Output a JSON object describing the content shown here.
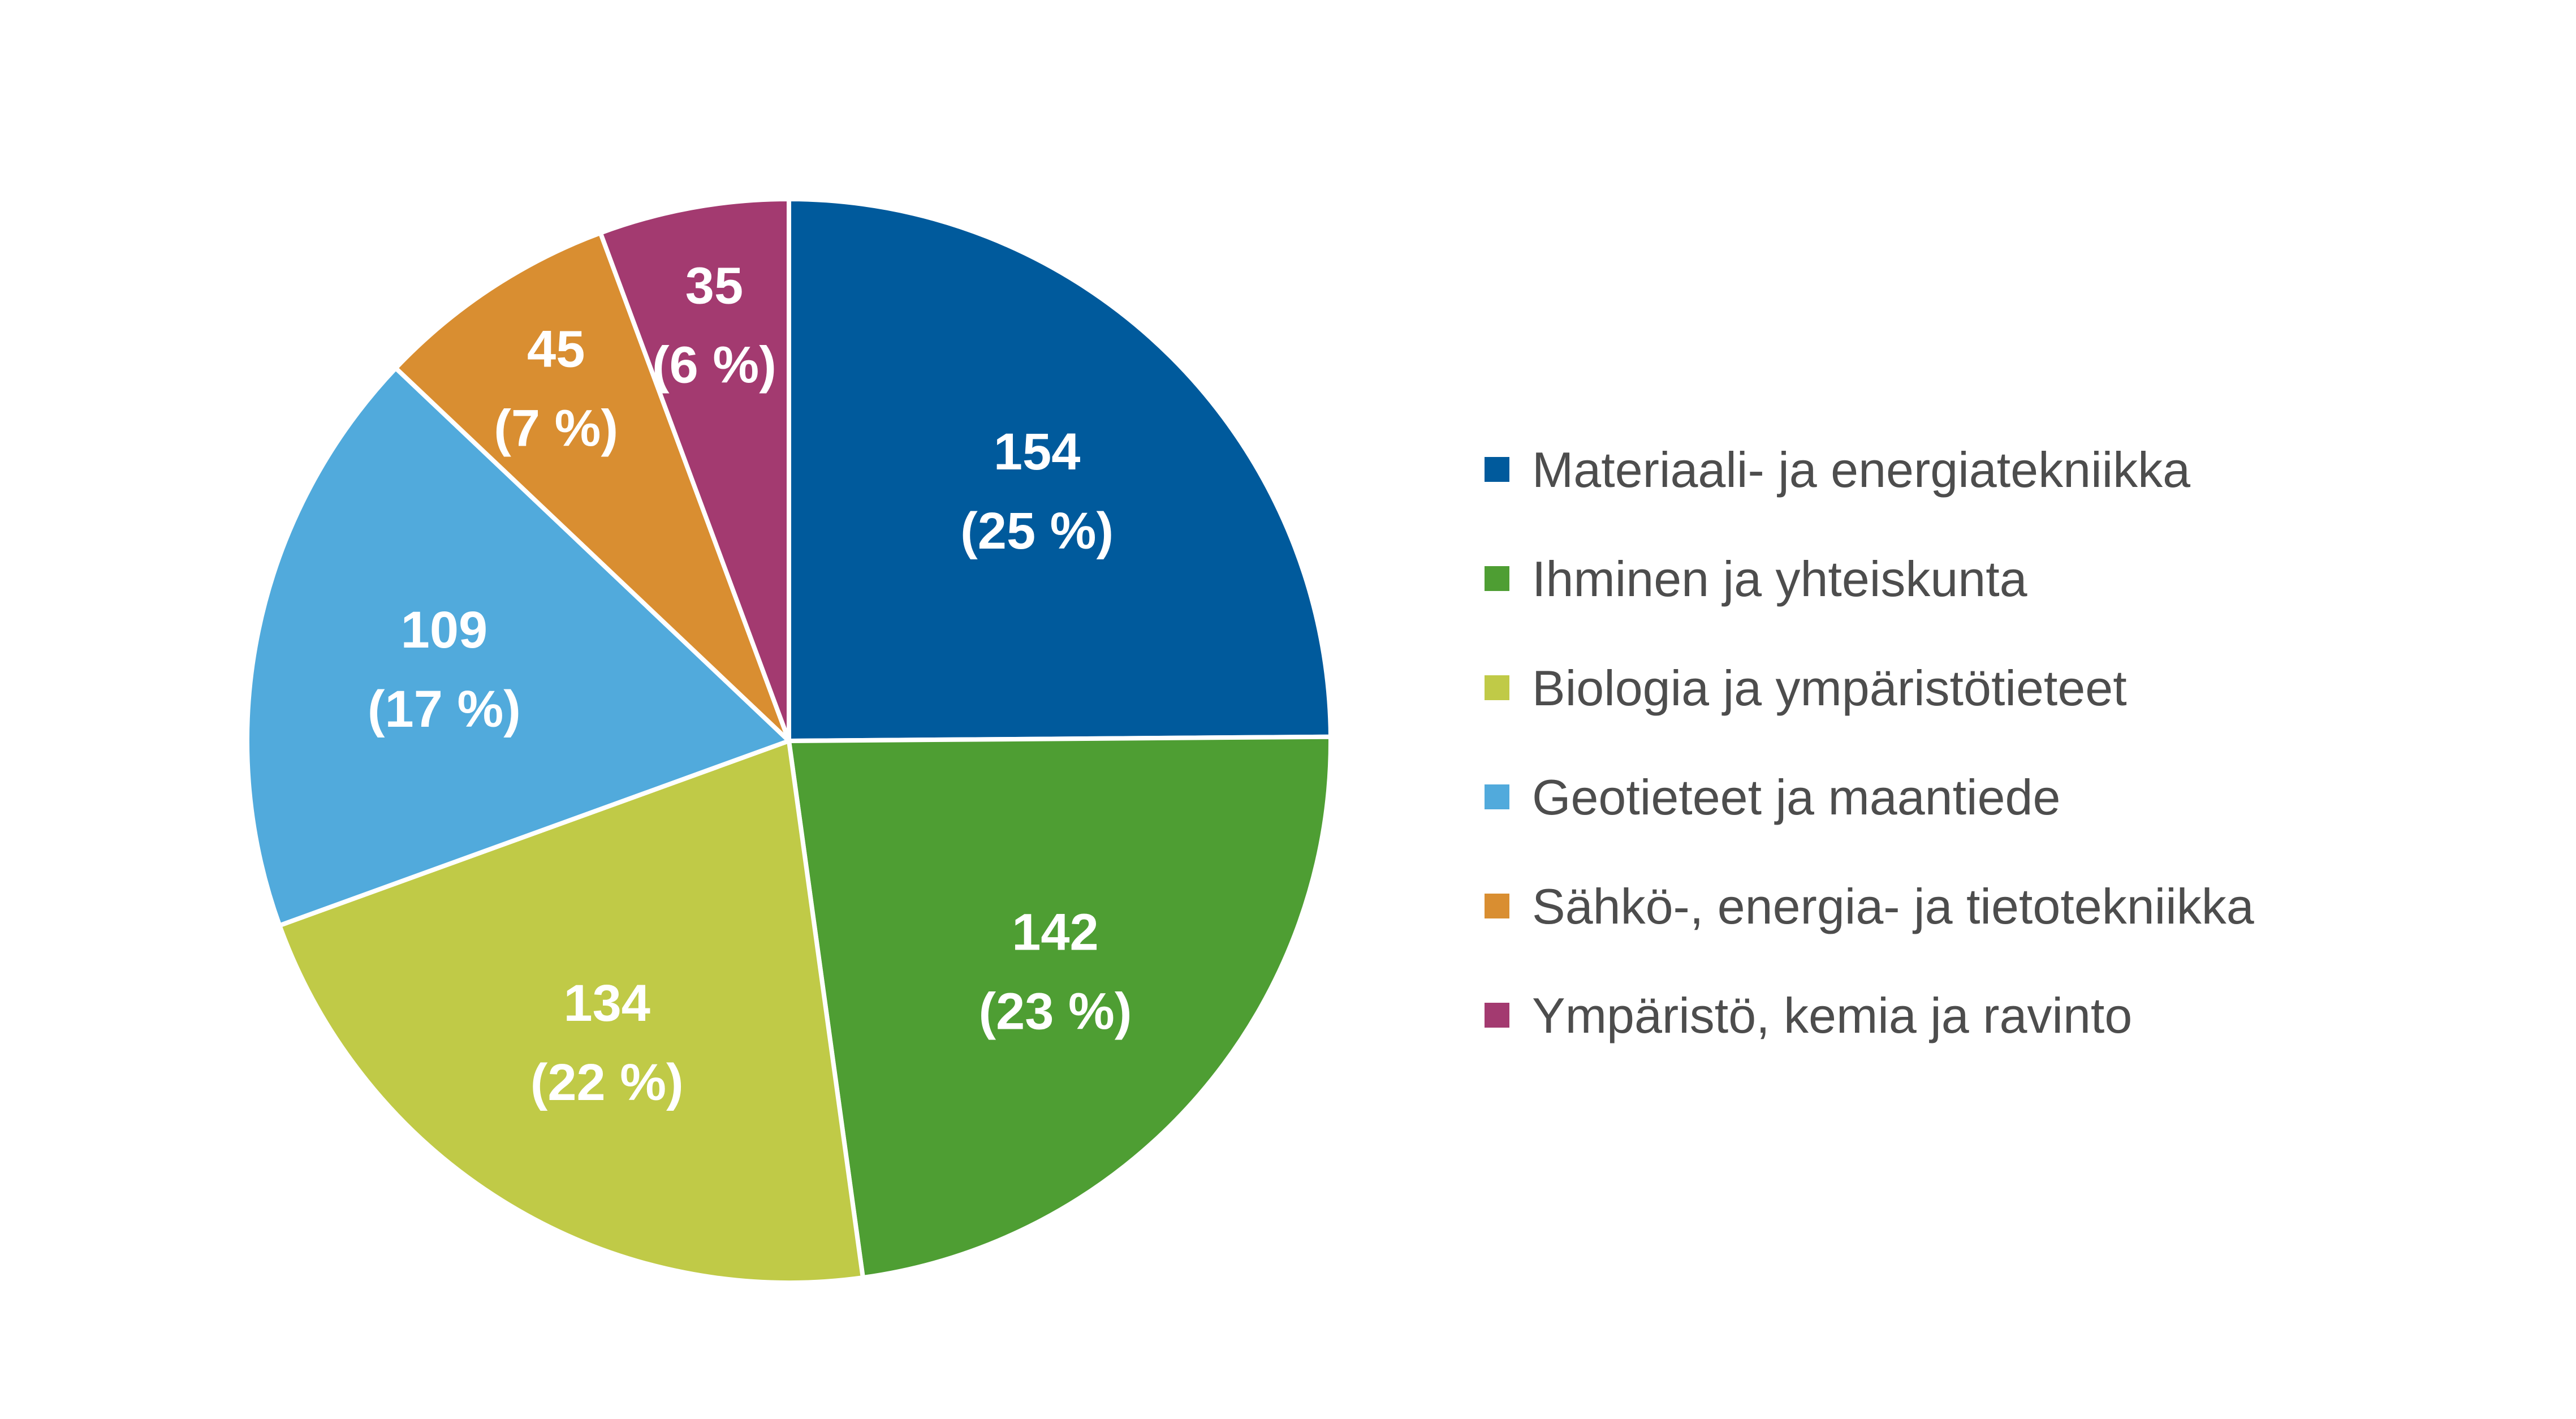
{
  "chart_data": {
    "type": "pie",
    "title": "",
    "start_angle_deg": 0,
    "direction": "clockwise",
    "legend_position": "right",
    "slice_border_color": "#ffffff",
    "label_color": "#ffffff",
    "legend_text_color": "#4d4d4d",
    "slices": [
      {
        "name": "Materiaali- ja energiatekniikka",
        "value": 154,
        "pct_label": "(25 %)",
        "value_label": "154",
        "color": "#005a9c"
      },
      {
        "name": "Ihminen ja yhteiskunta",
        "value": 142,
        "pct_label": "(23 %)",
        "value_label": "142",
        "color": "#4e9e33"
      },
      {
        "name": "Biologia ja ympäristötieteet",
        "value": 134,
        "pct_label": "(22 %)",
        "value_label": "134",
        "color": "#c0ca47"
      },
      {
        "name": "Geotieteet ja maantiede",
        "value": 109,
        "pct_label": "(17 %)",
        "value_label": "109",
        "color": "#51aadc"
      },
      {
        "name": "Sähkö-, energia- ja tietotekniikka",
        "value": 45,
        "pct_label": "(7 %)",
        "value_label": "45",
        "color": "#d98e31"
      },
      {
        "name": "Ympäristö, kemia ja ravinto",
        "value": 35,
        "pct_label": "(6 %)",
        "value_label": "35",
        "color": "#a33a70"
      }
    ]
  }
}
